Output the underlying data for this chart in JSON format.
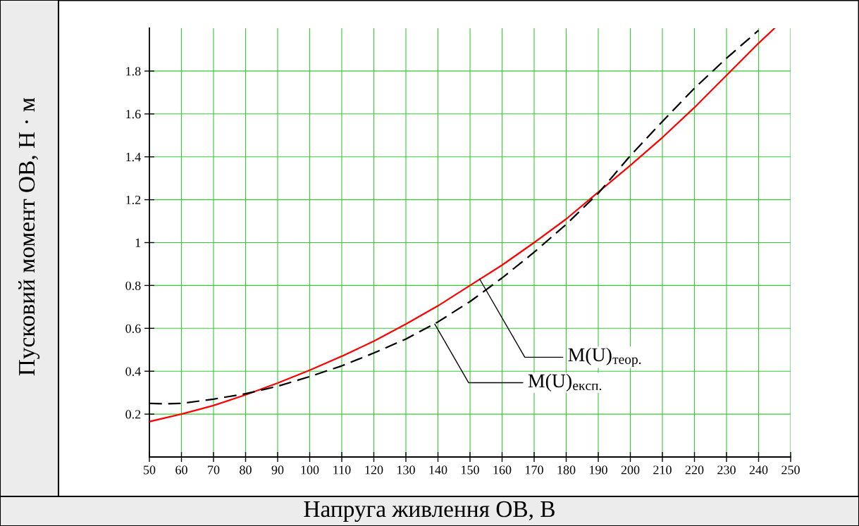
{
  "chart_data": {
    "type": "line",
    "xlabel": "Напруга живлення ОВ, В",
    "ylabel": "Пусковий момент ОВ, Н · м",
    "xlim": [
      50,
      250
    ],
    "ylim": [
      0,
      2.0
    ],
    "xticks": [
      50,
      60,
      70,
      80,
      90,
      100,
      110,
      120,
      130,
      140,
      150,
      160,
      170,
      180,
      190,
      200,
      210,
      220,
      230,
      240,
      250
    ],
    "yticks": [
      0.2,
      0.4,
      0.6,
      0.8,
      1,
      1.2,
      1.4,
      1.6,
      1.8
    ],
    "grid": true,
    "series": [
      {
        "color": "#ff0000",
        "line_style": "solid",
        "x": [
          50,
          60,
          70,
          80,
          90,
          100,
          110,
          120,
          130,
          140,
          150,
          160,
          170,
          180,
          190,
          200,
          210,
          220,
          230,
          240,
          245
        ],
        "values": [
          0.165,
          0.2,
          0.24,
          0.29,
          0.345,
          0.405,
          0.47,
          0.54,
          0.62,
          0.705,
          0.8,
          0.895,
          1.0,
          1.11,
          1.235,
          1.36,
          1.49,
          1.63,
          1.78,
          1.93,
          2.0
        ]
      },
      {
        "color": "#000000",
        "line_style": "dashed",
        "x": [
          50,
          55,
          60,
          70,
          80,
          90,
          100,
          110,
          120,
          130,
          140,
          150,
          160,
          170,
          180,
          190,
          200,
          210,
          220,
          230,
          240
        ],
        "values": [
          0.25,
          0.248,
          0.25,
          0.27,
          0.295,
          0.33,
          0.375,
          0.425,
          0.485,
          0.55,
          0.63,
          0.725,
          0.835,
          0.955,
          1.085,
          1.23,
          1.405,
          1.565,
          1.72,
          1.86,
          1.99
        ]
      }
    ],
    "annotations": [
      {
        "text": "M(U)$_{теор.}$",
        "x": 153,
        "y": 0.83
      },
      {
        "text": "M(U)$_{експ.}$",
        "x": 139,
        "y": 0.62
      }
    ]
  }
}
